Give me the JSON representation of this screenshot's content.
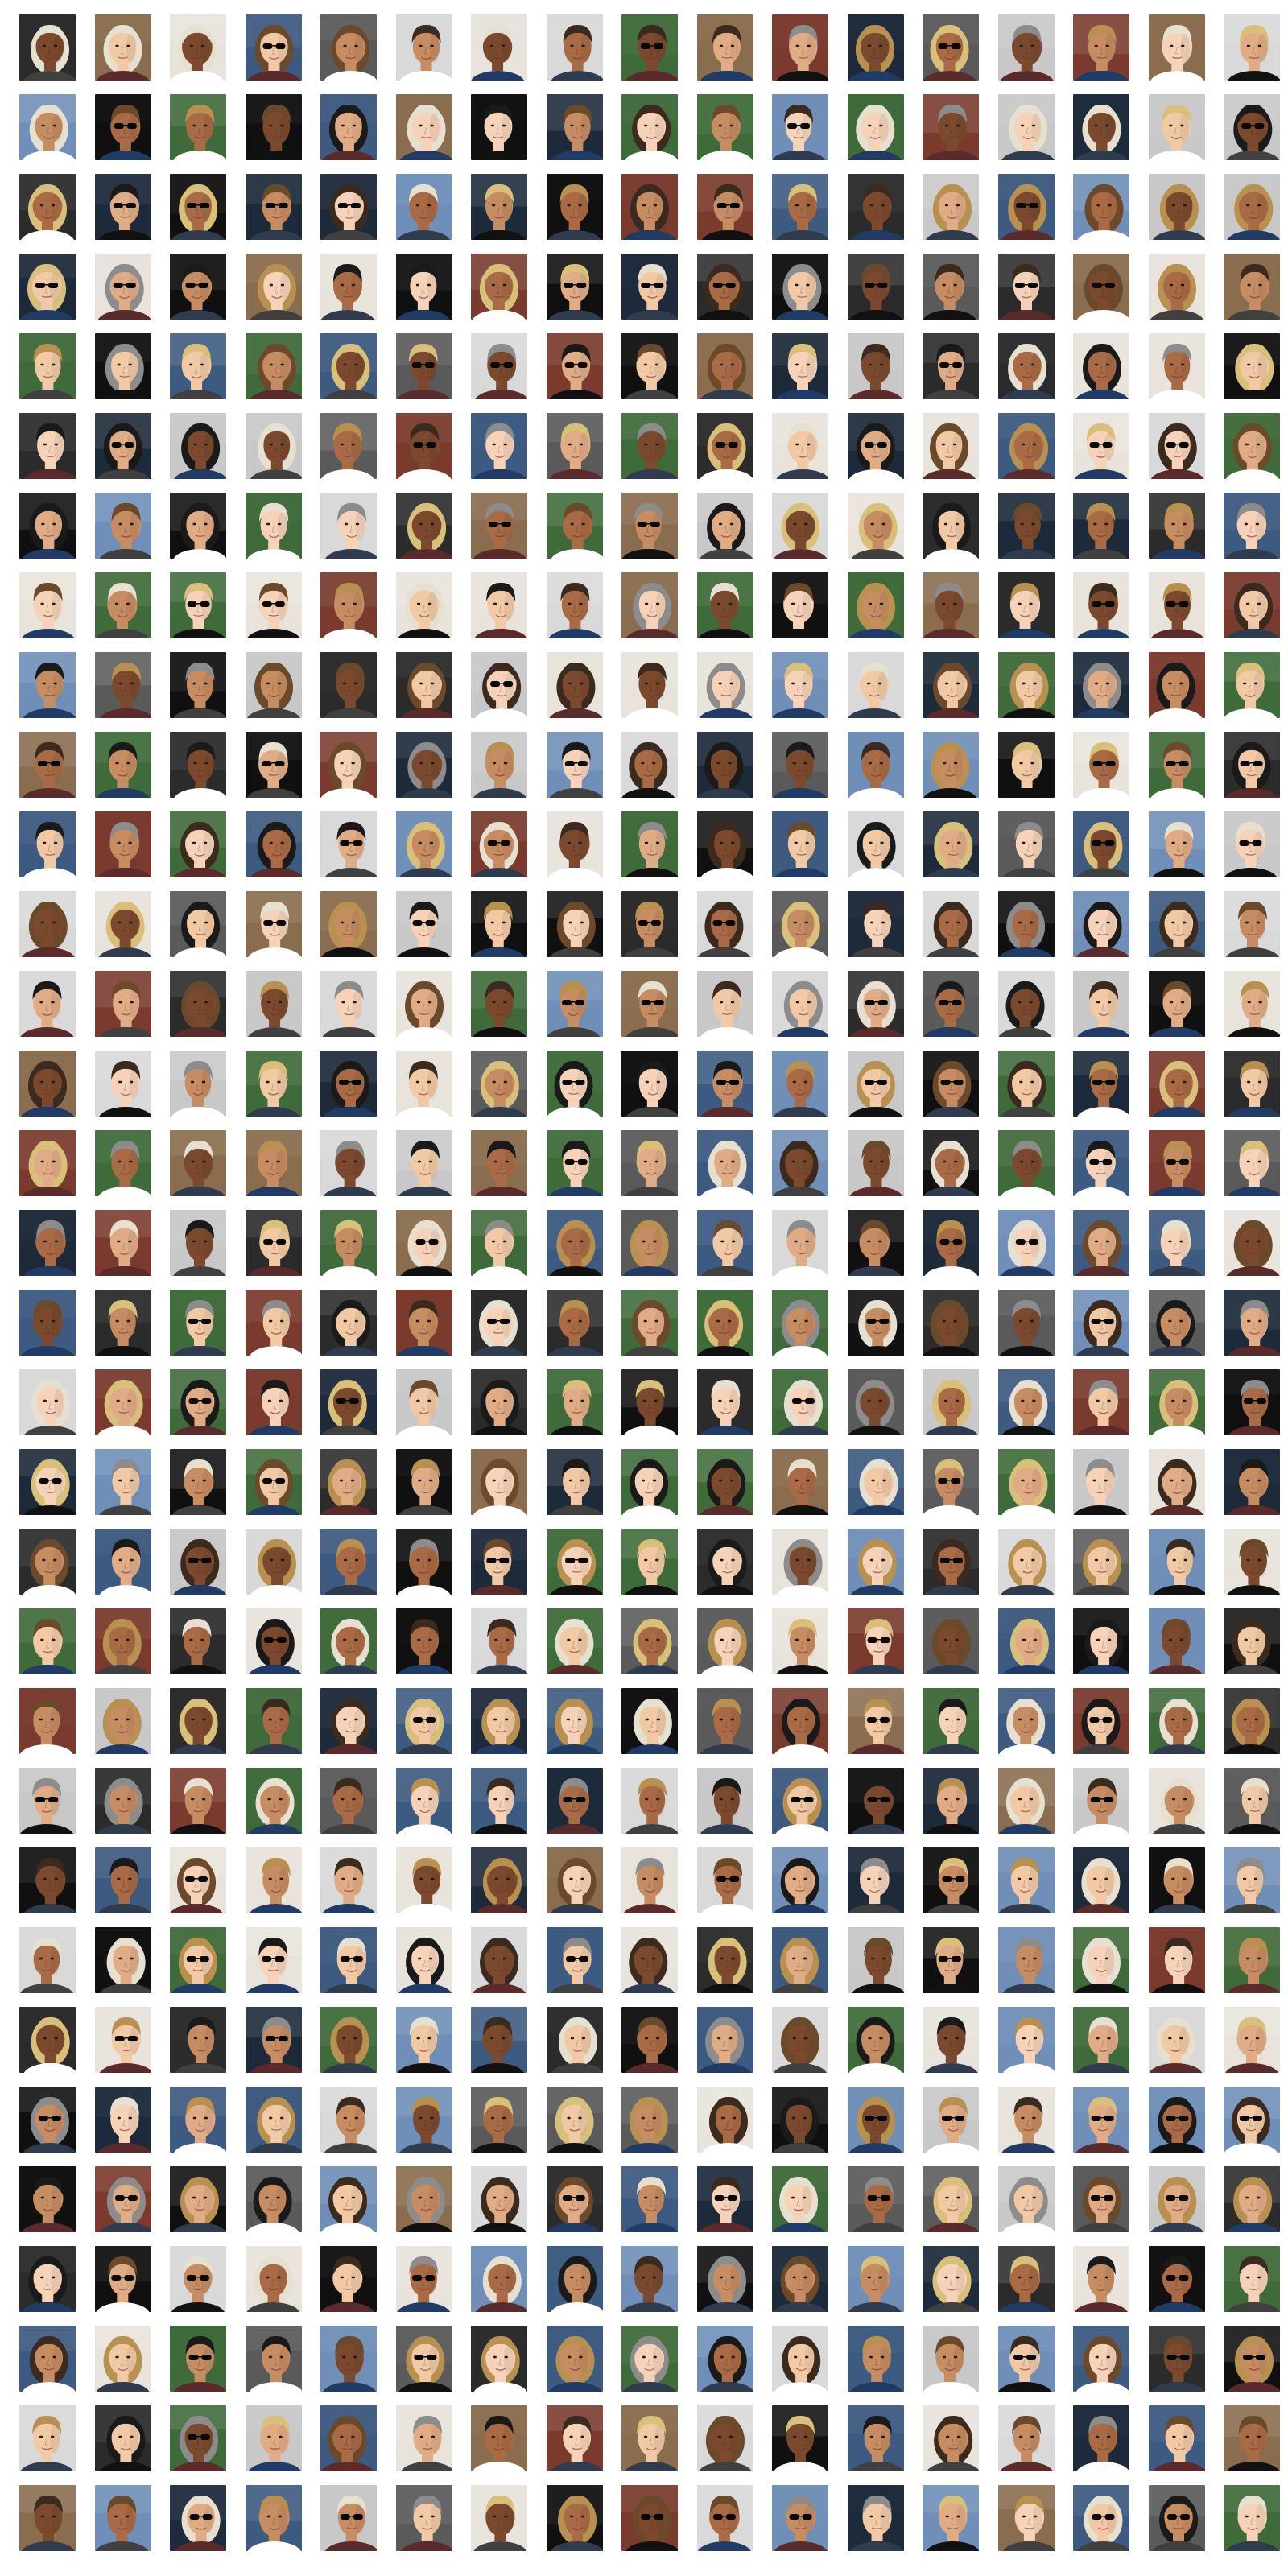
{
  "grid": {
    "columns": 17,
    "rows": 32,
    "tile_count": 544,
    "content": "face-photo",
    "background_palette": [
      "#2b2b2b",
      "#101010",
      "#d9d9d9",
      "#6f8fb8",
      "#3d5a80",
      "#8a6d4e",
      "#c8c8c8",
      "#1d2a3a",
      "#5a5a5a",
      "#e8e4dc",
      "#7a3b2e",
      "#3f6b3a"
    ],
    "skin_palette": [
      "#f1c9a5",
      "#e0ac85",
      "#c68c62",
      "#a86b45",
      "#7b4a2e",
      "#f5d2b8"
    ],
    "hair_palette": [
      "#1a1a1a",
      "#3b2a1e",
      "#6b4a2b",
      "#b8904f",
      "#d9c07a",
      "#8c8c8c",
      "#e6e0d0"
    ],
    "clothing_palette": [
      "#111111",
      "#2f3b4f",
      "#ffffff",
      "#5b2a2a",
      "#404040",
      "#1f3b66"
    ]
  }
}
